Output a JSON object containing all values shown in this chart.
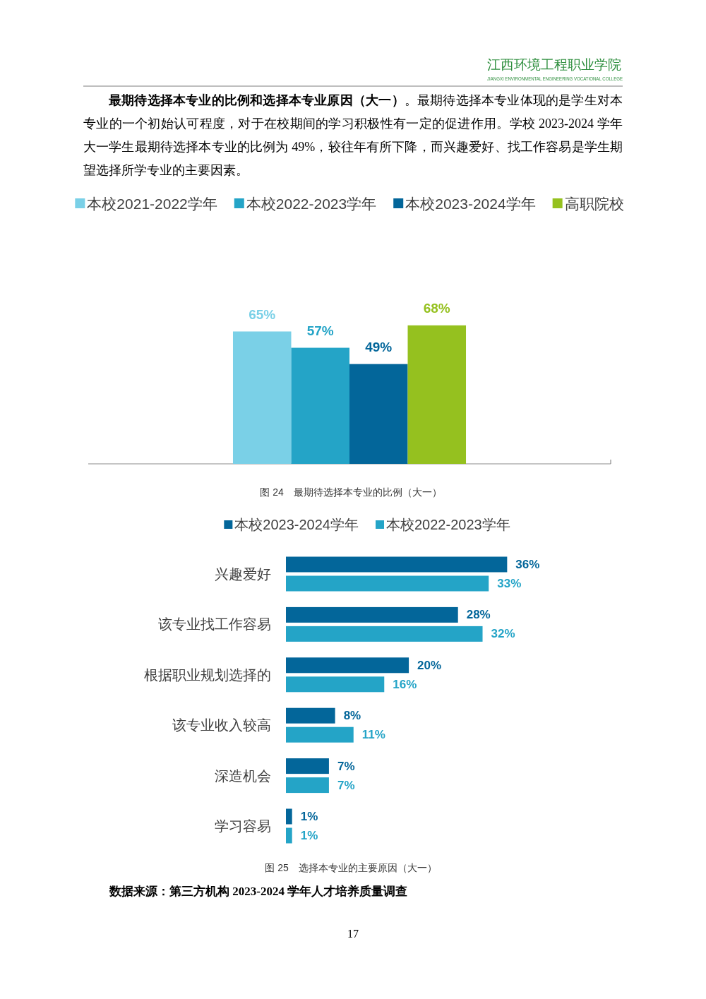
{
  "chart_data": [
    {
      "type": "bar",
      "title": "图 24　最期待选择本专业的比例（大一）",
      "annotations": [
        "江西环境工程职业学院",
        "JIANGXI ENVIRONMENTAL ENGINEERING VOCATIONAL COLLEGE",
        "**最期待选择本专业的比例和选择本专业原因（大一）**。最期待选择本专业体现的是学生对本专业的一个初始认可程度，对于在校期间的学习积极性有一定的促进作用。学校 2023-2024 学年大一学生最期待选择本专业的比例为 49%，较往年有所下降，而兴趣爱好、找工作容易是学生期望选择所学专业的主要因素。"
      ],
      "categories": [
        null
      ],
      "series": [
        {
          "name": "本校2021-2022学年",
          "color": "#7ad0e7",
          "values": [
            65
          ],
          "value_labels": [
            "65%"
          ]
        },
        {
          "name": "本校2022-2023学年",
          "color": "#24a4c7",
          "values": [
            57
          ],
          "value_labels": [
            "57%"
          ]
        },
        {
          "name": "本校2023-2024学年",
          "color": "#03669a",
          "values": [
            49
          ],
          "value_labels": [
            "49%"
          ]
        },
        {
          "name": "高职院校",
          "color": "#95c11f",
          "values": [
            68
          ],
          "value_labels": [
            "68%"
          ]
        }
      ],
      "legend": "top"
    },
    {
      "type": "bar",
      "orientation": "horizontal",
      "title": "图 25　选择本专业的主要原因（大一）",
      "categories": [
        "兴趣爱好",
        "该专业找工作容易",
        "根据职业规划选择的",
        "该专业收入较高",
        "深造机会",
        "学习容易"
      ],
      "series": [
        {
          "name": "本校2023-2024学年",
          "color": "#03669a",
          "values": [
            36,
            28,
            20,
            8,
            7,
            1
          ],
          "value_labels": [
            "36%",
            "28%",
            "20%",
            "8%",
            "7%",
            "1%"
          ]
        },
        {
          "name": "本校2022-2023学年",
          "color": "#24a4c7",
          "values": [
            33,
            32,
            16,
            11,
            7,
            1
          ],
          "value_labels": [
            "33%",
            "32%",
            "16%",
            "11%",
            "7%",
            "1%"
          ]
        }
      ],
      "legend": "top",
      "annotations": [
        "数据来源：第三方机构 2023-2024 学年人才培养质量调查",
        "17"
      ]
    }
  ]
}
